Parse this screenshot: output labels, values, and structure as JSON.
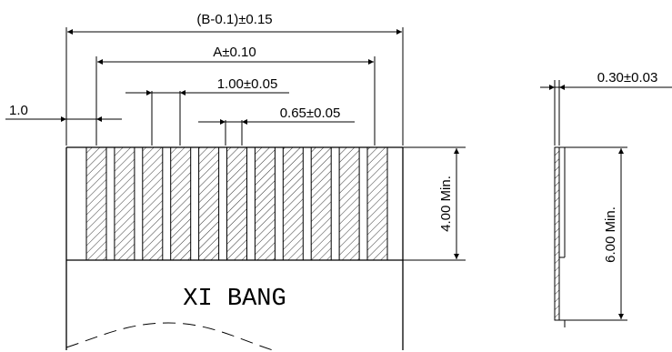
{
  "front_view": {
    "overall_width_label": "(B-0.1)±0.15",
    "contact_span_label": "A±0.10",
    "pitch_label": "1.00±0.05",
    "contact_width_label": "0.65±0.05",
    "edge_offset_label": "1.0",
    "contact_length_label": "4.00 Min.",
    "contact_count": 11,
    "marking_text": "XI BANG"
  },
  "side_view": {
    "thickness_label": "0.30±0.03",
    "stiffener_length_label": "6.00 Min."
  },
  "colors": {
    "line": "#000000",
    "background": "#ffffff"
  }
}
